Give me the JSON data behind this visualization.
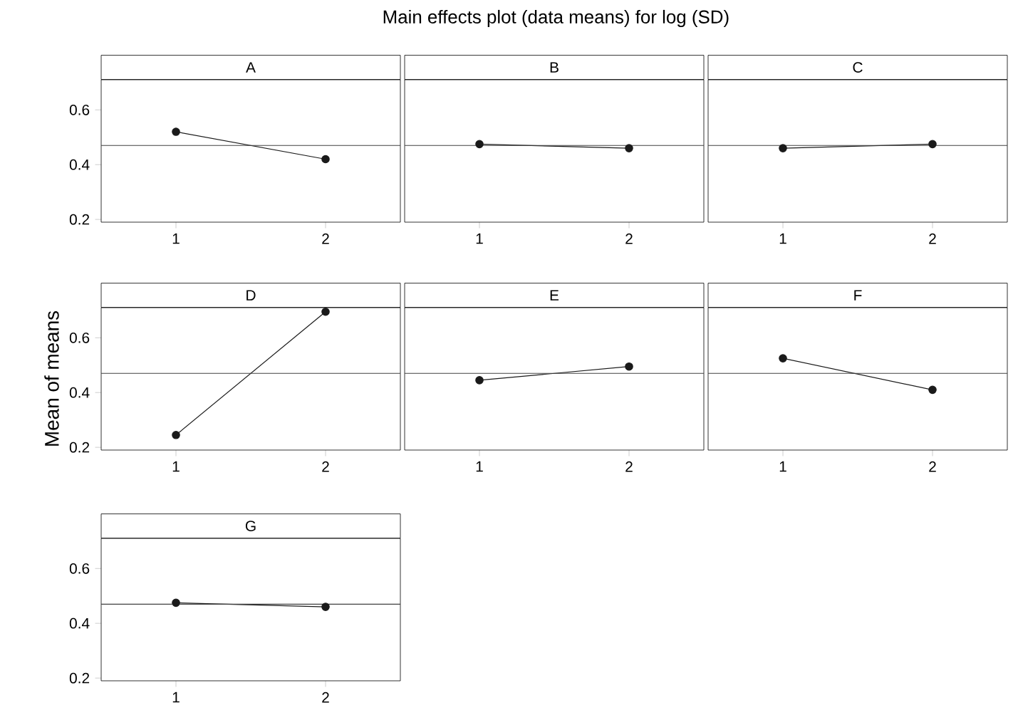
{
  "chart_data": [
    {
      "type": "line",
      "title": "A",
      "annotations": [
        "Main effects plot (data means) for log (SD)"
      ],
      "categories": [
        "1",
        "2"
      ],
      "values": [
        0.52,
        0.42
      ],
      "color": "#1a1a1a",
      "marker": "circle",
      "ylim": [
        0.19,
        0.71
      ],
      "yticks": [
        0.2,
        0.4,
        0.6
      ],
      "ref_lines": [
        {
          "axis": "y",
          "value": 0.47
        }
      ]
    },
    {
      "type": "line",
      "title": "B",
      "categories": [
        "1",
        "2"
      ],
      "values": [
        0.475,
        0.46
      ],
      "color": "#1a1a1a",
      "marker": "circle",
      "ylim": [
        0.19,
        0.71
      ],
      "yticks": [
        0.2,
        0.4,
        0.6
      ],
      "tick_labels": "x",
      "ref_lines": [
        {
          "axis": "y",
          "value": 0.47
        }
      ]
    },
    {
      "type": "line",
      "title": "C",
      "categories": [
        "1",
        "2"
      ],
      "values": [
        0.46,
        0.475
      ],
      "color": "#1a1a1a",
      "marker": "circle",
      "ylim": [
        0.19,
        0.71
      ],
      "yticks": [
        0.2,
        0.4,
        0.6
      ],
      "tick_labels": "x",
      "ref_lines": [
        {
          "axis": "y",
          "value": 0.47
        }
      ]
    },
    {
      "type": "line",
      "title": "D",
      "ylabel": "Mean of means",
      "categories": [
        "1",
        "2"
      ],
      "values": [
        0.245,
        0.695
      ],
      "color": "#1a1a1a",
      "marker": "circle",
      "ylim": [
        0.19,
        0.71
      ],
      "yticks": [
        0.2,
        0.4,
        0.6
      ],
      "ref_lines": [
        {
          "axis": "y",
          "value": 0.47
        }
      ]
    },
    {
      "type": "line",
      "title": "E",
      "categories": [
        "1",
        "2"
      ],
      "values": [
        0.445,
        0.495
      ],
      "color": "#1a1a1a",
      "marker": "circle",
      "ylim": [
        0.19,
        0.71
      ],
      "yticks": [
        0.2,
        0.4,
        0.6
      ],
      "tick_labels": "x",
      "ref_lines": [
        {
          "axis": "y",
          "value": 0.47
        }
      ]
    },
    {
      "type": "line",
      "title": "F",
      "categories": [
        "1",
        "2"
      ],
      "values": [
        0.525,
        0.41
      ],
      "color": "#1a1a1a",
      "marker": "circle",
      "ylim": [
        0.19,
        0.71
      ],
      "yticks": [
        0.2,
        0.4,
        0.6
      ],
      "tick_labels": "x",
      "ref_lines": [
        {
          "axis": "y",
          "value": 0.47
        }
      ]
    },
    {
      "type": "line",
      "title": "G",
      "categories": [
        "1",
        "2"
      ],
      "values": [
        0.475,
        0.46
      ],
      "color": "#1a1a1a",
      "marker": "circle",
      "ylim": [
        0.19,
        0.71
      ],
      "yticks": [
        0.2,
        0.4,
        0.6
      ],
      "ref_lines": [
        {
          "axis": "y",
          "value": 0.47
        }
      ]
    }
  ]
}
